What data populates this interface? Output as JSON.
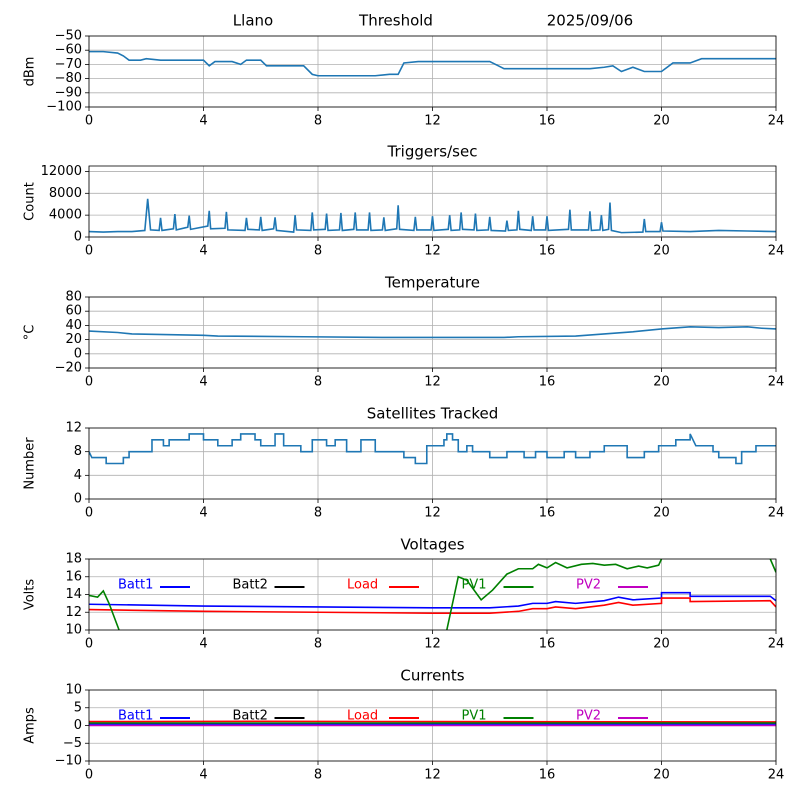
{
  "chart_data": [
    {
      "type": "line",
      "station": "Llano",
      "title": "Threshold",
      "date": "2025/09/06",
      "ylabel": "dBm",
      "xlim": [
        0,
        24
      ],
      "xticks": [
        0,
        4,
        8,
        12,
        16,
        20,
        24
      ],
      "ylim": [
        -100,
        -50
      ],
      "yticks": [
        {
          "value": -100,
          "label": "−100"
        },
        {
          "value": -90,
          "label": "−90"
        },
        {
          "value": -80,
          "label": "−80"
        },
        {
          "value": -70,
          "label": "−70"
        },
        {
          "value": -60,
          "label": "−60"
        },
        {
          "value": -50,
          "label": "−50"
        }
      ],
      "grid": true,
      "series": [
        {
          "color": "#1f77b4",
          "x": [
            0,
            0.5,
            1,
            1.2,
            1.4,
            1.8,
            2,
            2.5,
            4,
            4.2,
            4.4,
            5,
            5.3,
            5.5,
            6,
            6.2,
            7,
            7.5,
            7.8,
            8,
            10,
            10.5,
            10.8,
            11,
            11.5,
            14,
            14.3,
            14.5,
            15,
            17,
            17.5,
            18,
            18.3,
            18.6,
            19,
            19.4,
            20,
            20.4,
            21,
            21.4,
            24
          ],
          "values": [
            -61,
            -61,
            -62,
            -64,
            -67,
            -67,
            -66,
            -67,
            -67,
            -71,
            -68,
            -68,
            -70,
            -67,
            -67,
            -71,
            -71,
            -71,
            -77,
            -78,
            -78,
            -77,
            -77,
            -69,
            -68,
            -68,
            -71,
            -73,
            -73,
            -73,
            -73,
            -72,
            -71,
            -75,
            -72,
            -75,
            -75,
            -69,
            -69,
            -66,
            -66
          ]
        }
      ]
    },
    {
      "type": "line",
      "title": "Triggers/sec",
      "ylabel": "Count",
      "xlim": [
        0,
        24
      ],
      "xticks": [
        0,
        4,
        8,
        12,
        16,
        20,
        24
      ],
      "ylim": [
        0,
        13000
      ],
      "yticks": [
        0,
        4000,
        8000,
        12000
      ],
      "grid": true,
      "series": [
        {
          "color": "#1f77b4",
          "x": [
            0,
            0.5,
            1,
            1.5,
            1.95,
            2.05,
            2.15,
            2.45,
            2.5,
            2.55,
            2.95,
            3.0,
            3.05,
            3.45,
            3.5,
            3.55,
            4.15,
            4.2,
            4.25,
            4.75,
            4.8,
            4.85,
            5.45,
            5.5,
            5.55,
            5.95,
            6.0,
            6.05,
            6.45,
            6.5,
            6.55,
            7.15,
            7.2,
            7.25,
            7.75,
            7.8,
            7.85,
            8.25,
            8.3,
            8.35,
            8.75,
            8.8,
            8.85,
            9.25,
            9.3,
            9.35,
            9.75,
            9.8,
            9.85,
            10.25,
            10.3,
            10.35,
            10.75,
            10.8,
            10.85,
            11.35,
            11.4,
            11.45,
            11.95,
            12.0,
            12.05,
            12.55,
            12.6,
            12.65,
            12.95,
            13.0,
            13.05,
            13.45,
            13.5,
            13.55,
            13.95,
            14.0,
            14.05,
            14.55,
            14.6,
            14.65,
            14.95,
            15.0,
            15.05,
            15.45,
            15.5,
            15.55,
            15.95,
            16.0,
            16.05,
            16.75,
            16.8,
            16.85,
            17.45,
            17.5,
            17.55,
            17.85,
            17.9,
            17.95,
            18.15,
            18.2,
            18.25,
            18.6,
            19.35,
            19.4,
            19.45,
            19.95,
            20.0,
            20.05,
            21,
            22,
            23,
            24
          ],
          "values": [
            1000,
            900,
            1000,
            1000,
            1200,
            7000,
            1300,
            1200,
            3500,
            1200,
            1500,
            4200,
            1300,
            1800,
            3900,
            1400,
            2000,
            4800,
            1500,
            1600,
            4600,
            1300,
            1200,
            3500,
            1400,
            1300,
            3700,
            1200,
            1500,
            3600,
            1200,
            900,
            4000,
            1300,
            1200,
            4500,
            1300,
            1400,
            4300,
            1200,
            1300,
            4400,
            1200,
            1400,
            4500,
            1300,
            1300,
            4500,
            1200,
            1300,
            3600,
            1200,
            1500,
            5800,
            1400,
            1200,
            3700,
            1300,
            1300,
            3800,
            1200,
            1400,
            4000,
            1200,
            1300,
            4500,
            1400,
            1300,
            4300,
            1200,
            1300,
            3700,
            1200,
            1100,
            3000,
            1200,
            1300,
            4800,
            1400,
            1200,
            3800,
            1300,
            1300,
            3800,
            1200,
            1400,
            5000,
            1300,
            1300,
            4700,
            1200,
            1300,
            4000,
            1200,
            1400,
            6300,
            1200,
            800,
            900,
            3300,
            1000,
            1000,
            2700,
            1100,
            1000,
            1200,
            1100,
            1000
          ]
        }
      ]
    },
    {
      "type": "line",
      "title": "Temperature",
      "ylabel": "°C",
      "xlim": [
        0,
        24
      ],
      "xticks": [
        0,
        4,
        8,
        12,
        16,
        20,
        24
      ],
      "ylim": [
        -20,
        80
      ],
      "yticks": [
        {
          "value": -20,
          "label": "−20"
        },
        0,
        20,
        40,
        60,
        80
      ],
      "grid": true,
      "series": [
        {
          "color": "#1f77b4",
          "x": [
            0,
            1,
            1.5,
            4,
            4.5,
            7.5,
            10.5,
            14.5,
            15,
            17,
            18,
            19,
            20,
            21,
            22,
            23,
            23.5,
            24
          ],
          "values": [
            32,
            30,
            28,
            26,
            25,
            24,
            23,
            23,
            24,
            25,
            28,
            31,
            35,
            38,
            37,
            38,
            36,
            35
          ]
        }
      ]
    },
    {
      "type": "line",
      "title": "Satellites Tracked",
      "ylabel": "Number",
      "xlim": [
        0,
        24
      ],
      "xticks": [
        0,
        4,
        8,
        12,
        16,
        20,
        24
      ],
      "ylim": [
        0,
        12
      ],
      "yticks": [
        0,
        4,
        8,
        12
      ],
      "grid": true,
      "series": [
        {
          "color": "#1f77b4",
          "x": [
            0,
            0.1,
            0.6,
            0.6,
            1.2,
            1.2,
            1.4,
            1.4,
            2.2,
            2.2,
            2.6,
            2.6,
            2.8,
            2.8,
            3.5,
            3.5,
            4,
            4,
            4.5,
            4.5,
            5,
            5,
            5.3,
            5.3,
            5.8,
            5.8,
            6,
            6,
            6.5,
            6.5,
            6.8,
            6.8,
            7.4,
            7.4,
            7.8,
            7.8,
            8.3,
            8.3,
            8.6,
            8.6,
            9,
            9,
            9.5,
            9.5,
            10,
            10,
            11,
            11,
            11.4,
            11.4,
            11.8,
            11.8,
            12.4,
            12.4,
            12.5,
            12.5,
            12.7,
            12.7,
            12.9,
            12.9,
            13.2,
            13.2,
            13.4,
            13.4,
            14,
            14,
            14.6,
            14.6,
            15.2,
            15.2,
            15.6,
            15.6,
            16,
            16,
            16.6,
            16.6,
            17,
            17,
            17.5,
            17.5,
            18,
            18,
            18.8,
            18.8,
            19.4,
            19.4,
            19.9,
            19.9,
            20.5,
            20.5,
            21,
            21,
            21.2,
            21.8,
            21.8,
            22,
            22,
            22.6,
            22.6,
            22.8,
            22.8,
            23.3,
            23.3,
            24
          ],
          "values": [
            8,
            7,
            7,
            6,
            6,
            7,
            7,
            8,
            8,
            10,
            10,
            9,
            9,
            10,
            10,
            11,
            11,
            10,
            10,
            9,
            9,
            10,
            10,
            11,
            11,
            10,
            10,
            9,
            9,
            11,
            11,
            9,
            9,
            8,
            8,
            10,
            10,
            9,
            9,
            10,
            10,
            8,
            8,
            10,
            10,
            8,
            8,
            7,
            7,
            6,
            6,
            9,
            9,
            10,
            10,
            11,
            11,
            10,
            10,
            8,
            8,
            9,
            9,
            8,
            8,
            7,
            7,
            8,
            8,
            7,
            7,
            8,
            8,
            7,
            7,
            8,
            8,
            7,
            7,
            8,
            8,
            9,
            9,
            7,
            7,
            8,
            8,
            9,
            9,
            10,
            10,
            11,
            9,
            9,
            8,
            8,
            7,
            7,
            6,
            6,
            8,
            8,
            9,
            9
          ]
        }
      ]
    },
    {
      "type": "line",
      "title": "Voltages",
      "ylabel": "Volts",
      "xlim": [
        0,
        24
      ],
      "xticks": [
        0,
        4,
        8,
        12,
        16,
        20,
        24
      ],
      "ylim": [
        10,
        18
      ],
      "yticks": [
        10,
        12,
        14,
        16,
        18
      ],
      "grid": true,
      "legend": "upper center",
      "series": [
        {
          "name": "Batt1",
          "color": "#0000ff",
          "x": [
            0,
            4,
            8,
            12,
            14,
            15,
            15.5,
            16,
            16.3,
            17,
            18,
            18.5,
            19,
            20,
            20,
            21,
            21,
            23,
            23.8,
            24
          ],
          "values": [
            12.9,
            12.7,
            12.6,
            12.5,
            12.5,
            12.7,
            13,
            13,
            13.2,
            13,
            13.3,
            13.7,
            13.4,
            13.6,
            14.2,
            14.2,
            13.8,
            13.8,
            13.8,
            13.3
          ]
        },
        {
          "name": "Batt2",
          "color": "#000000",
          "x": [],
          "values": []
        },
        {
          "name": "Load",
          "color": "#ff0000",
          "x": [
            0,
            4,
            8,
            12,
            14,
            15,
            15.5,
            16,
            16.3,
            17,
            18,
            18.5,
            19,
            20,
            20,
            21,
            21,
            23.8,
            24
          ],
          "values": [
            12.3,
            12.1,
            12,
            11.9,
            11.9,
            12.1,
            12.4,
            12.4,
            12.6,
            12.4,
            12.8,
            13.1,
            12.8,
            13,
            13.6,
            13.6,
            13.2,
            13.3,
            12.6
          ]
        },
        {
          "name": "PV1",
          "color": "#008000",
          "x": [
            0,
            0.3,
            0.5,
            0.7,
            1.05,
            6,
            12.5,
            12.7,
            12.9,
            13.2,
            13.7,
            14.1,
            14.6,
            15,
            15.5,
            15.7,
            16,
            16.3,
            16.7,
            17.2,
            17.6,
            18,
            18.4,
            18.8,
            19.2,
            19.5,
            19.9,
            20,
            22,
            23.8,
            24
          ],
          "values": [
            13.9,
            13.7,
            14.4,
            13,
            10,
            null,
            10,
            13,
            16,
            15.6,
            13.4,
            14.5,
            16.3,
            16.9,
            16.9,
            17.4,
            17,
            17.6,
            17,
            17.4,
            17.5,
            17.3,
            17.4,
            16.9,
            17.2,
            17,
            17.3,
            18,
            null,
            18,
            16.5
          ]
        },
        {
          "name": "PV2",
          "color": "#c000c0",
          "x": [],
          "values": []
        }
      ]
    },
    {
      "type": "line",
      "title": "Currents",
      "ylabel": "Amps",
      "xlim": [
        0,
        24
      ],
      "xticks": [
        0,
        4,
        8,
        12,
        16,
        20,
        24
      ],
      "ylim": [
        -10,
        10
      ],
      "yticks": [
        {
          "value": -10,
          "label": "−10"
        },
        {
          "value": -5,
          "label": "−5"
        },
        0,
        5,
        10
      ],
      "grid": true,
      "legend": "upper center",
      "series": [
        {
          "name": "Batt1",
          "color": "#0000ff",
          "x": [
            0,
            24
          ],
          "values": [
            0.4,
            0.4
          ]
        },
        {
          "name": "Batt2",
          "color": "#000000",
          "x": [],
          "values": []
        },
        {
          "name": "Load",
          "color": "#ff0000",
          "x": [
            0,
            6,
            12,
            24
          ],
          "values": [
            1.1,
            1.2,
            1.1,
            1.0
          ]
        },
        {
          "name": "PV1",
          "color": "#008000",
          "x": [
            0,
            24
          ],
          "values": [
            0.7,
            0.7
          ]
        },
        {
          "name": "PV2",
          "color": "#c000c0",
          "x": [
            0,
            24
          ],
          "values": [
            0,
            0
          ]
        }
      ]
    }
  ]
}
